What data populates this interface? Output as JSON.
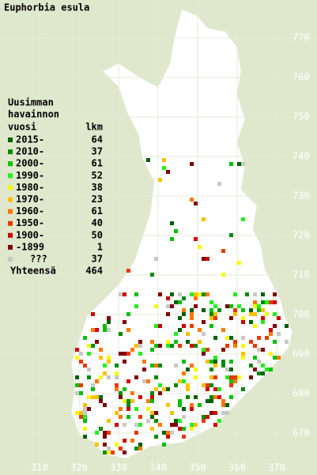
{
  "title": "Euphorbia esula",
  "legend": {
    "heading": [
      "Uusimman",
      "havainnon"
    ],
    "year_header": "vuosi",
    "count_header": "lkm",
    "rows": [
      {
        "label": "2015-",
        "count": 64,
        "color": "#006000"
      },
      {
        "label": "2010-",
        "count": 37,
        "color": "#008a00"
      },
      {
        "label": "2000-",
        "count": 61,
        "color": "#00c000"
      },
      {
        "label": "1990-",
        "count": 52,
        "color": "#20f020"
      },
      {
        "label": "1980-",
        "count": 38,
        "color": "#f8f800"
      },
      {
        "label": "1970-",
        "count": 23,
        "color": "#ffc000"
      },
      {
        "label": "1960-",
        "count": 61,
        "color": "#ff7800"
      },
      {
        "label": "1950-",
        "count": 40,
        "color": "#e83800"
      },
      {
        "label": "1900-",
        "count": 50,
        "color": "#d00000"
      },
      {
        "label": "-1899",
        "count": 1,
        "color": "#800000"
      },
      {
        "label": "???",
        "count": 37,
        "color": "#c8c8c8"
      }
    ],
    "total_label": "Yhteensä",
    "total": 464
  },
  "north_labels": [
    "770",
    "760",
    "750",
    "740",
    "730",
    "720",
    "710",
    "700",
    "690",
    "680",
    "670"
  ],
  "east_labels": [
    "310",
    "320",
    "330",
    "340",
    "350",
    "360",
    "370"
  ]
}
